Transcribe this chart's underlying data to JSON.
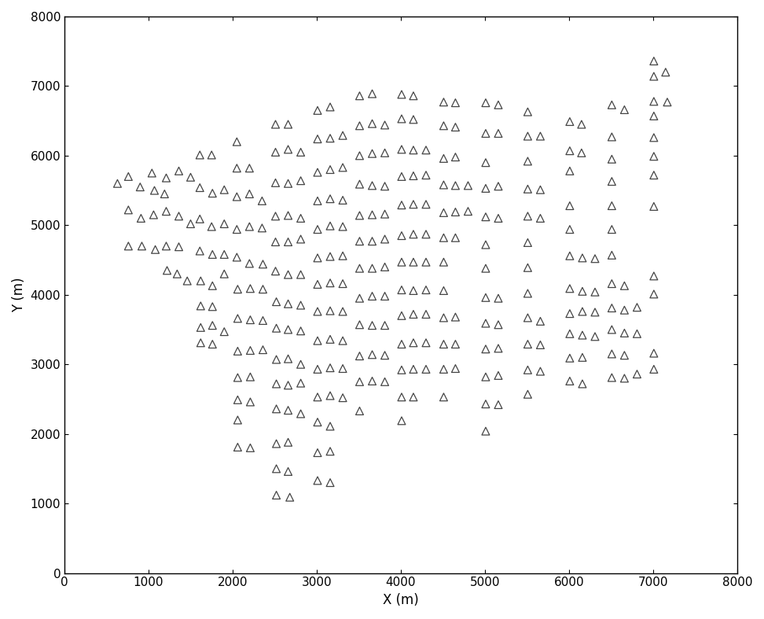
{
  "xlabel": "X (m)",
  "ylabel": "Y (m)",
  "xlim": [
    0,
    8000
  ],
  "ylim": [
    0,
    8000
  ],
  "xticks": [
    0,
    1000,
    2000,
    3000,
    4000,
    5000,
    6000,
    7000,
    8000
  ],
  "yticks": [
    0,
    1000,
    2000,
    3000,
    4000,
    5000,
    6000,
    7000,
    8000
  ],
  "background_color": "#ffffff",
  "figsize": [
    9.72,
    7.87
  ],
  "dpi": 100,
  "points": [
    [
      630,
      5600
    ],
    [
      760,
      5700
    ],
    [
      900,
      5550
    ],
    [
      1040,
      5750
    ],
    [
      760,
      5220
    ],
    [
      910,
      5100
    ],
    [
      1060,
      5150
    ],
    [
      1190,
      5450
    ],
    [
      760,
      4700
    ],
    [
      920,
      4700
    ],
    [
      1080,
      4650
    ],
    [
      1220,
      4350
    ],
    [
      1340,
      4300
    ],
    [
      1460,
      4200
    ],
    [
      1070,
      5500
    ],
    [
      1210,
      5680
    ],
    [
      1360,
      5780
    ],
    [
      1500,
      5690
    ],
    [
      1210,
      5200
    ],
    [
      1360,
      5130
    ],
    [
      1500,
      5020
    ],
    [
      1210,
      4700
    ],
    [
      1360,
      4690
    ],
    [
      1610,
      6010
    ],
    [
      1750,
      6010
    ],
    [
      1610,
      5540
    ],
    [
      1760,
      5460
    ],
    [
      1900,
      5510
    ],
    [
      1610,
      5090
    ],
    [
      1750,
      4980
    ],
    [
      1900,
      5020
    ],
    [
      1610,
      4630
    ],
    [
      1760,
      4580
    ],
    [
      1900,
      4580
    ],
    [
      1620,
      4200
    ],
    [
      1760,
      4130
    ],
    [
      1900,
      4300
    ],
    [
      1620,
      3840
    ],
    [
      1760,
      3830
    ],
    [
      1620,
      3530
    ],
    [
      1760,
      3560
    ],
    [
      1900,
      3470
    ],
    [
      1620,
      3310
    ],
    [
      1760,
      3290
    ],
    [
      2050,
      6200
    ],
    [
      2050,
      5820
    ],
    [
      2200,
      5820
    ],
    [
      2050,
      5410
    ],
    [
      2200,
      5450
    ],
    [
      2350,
      5350
    ],
    [
      2050,
      4940
    ],
    [
      2200,
      4980
    ],
    [
      2350,
      4960
    ],
    [
      2050,
      4540
    ],
    [
      2200,
      4450
    ],
    [
      2360,
      4440
    ],
    [
      2060,
      4080
    ],
    [
      2210,
      4090
    ],
    [
      2360,
      4080
    ],
    [
      2060,
      3660
    ],
    [
      2210,
      3640
    ],
    [
      2360,
      3630
    ],
    [
      2060,
      3190
    ],
    [
      2210,
      3200
    ],
    [
      2360,
      3210
    ],
    [
      2060,
      2810
    ],
    [
      2210,
      2820
    ],
    [
      2060,
      2490
    ],
    [
      2210,
      2460
    ],
    [
      2060,
      2200
    ],
    [
      2060,
      1810
    ],
    [
      2210,
      1800
    ],
    [
      2510,
      6450
    ],
    [
      2660,
      6450
    ],
    [
      2510,
      6050
    ],
    [
      2660,
      6090
    ],
    [
      2810,
      6050
    ],
    [
      2510,
      5610
    ],
    [
      2660,
      5600
    ],
    [
      2810,
      5640
    ],
    [
      2510,
      5130
    ],
    [
      2660,
      5140
    ],
    [
      2810,
      5100
    ],
    [
      2510,
      4760
    ],
    [
      2660,
      4760
    ],
    [
      2810,
      4800
    ],
    [
      2510,
      4340
    ],
    [
      2660,
      4290
    ],
    [
      2810,
      4290
    ],
    [
      2520,
      3900
    ],
    [
      2660,
      3870
    ],
    [
      2810,
      3850
    ],
    [
      2520,
      3520
    ],
    [
      2660,
      3500
    ],
    [
      2810,
      3480
    ],
    [
      2520,
      3070
    ],
    [
      2660,
      3080
    ],
    [
      2810,
      3000
    ],
    [
      2520,
      2720
    ],
    [
      2660,
      2700
    ],
    [
      2810,
      2730
    ],
    [
      2520,
      2360
    ],
    [
      2660,
      2340
    ],
    [
      2810,
      2290
    ],
    [
      2520,
      1860
    ],
    [
      2660,
      1880
    ],
    [
      2520,
      1500
    ],
    [
      2660,
      1460
    ],
    [
      2520,
      1120
    ],
    [
      2680,
      1090
    ],
    [
      3010,
      6650
    ],
    [
      3160,
      6700
    ],
    [
      3010,
      6240
    ],
    [
      3160,
      6250
    ],
    [
      3310,
      6290
    ],
    [
      3010,
      5760
    ],
    [
      3160,
      5800
    ],
    [
      3310,
      5830
    ],
    [
      3010,
      5350
    ],
    [
      3160,
      5380
    ],
    [
      3310,
      5360
    ],
    [
      3010,
      4940
    ],
    [
      3160,
      4990
    ],
    [
      3310,
      4980
    ],
    [
      3010,
      4530
    ],
    [
      3160,
      4550
    ],
    [
      3310,
      4560
    ],
    [
      3010,
      4150
    ],
    [
      3160,
      4170
    ],
    [
      3310,
      4160
    ],
    [
      3010,
      3760
    ],
    [
      3160,
      3770
    ],
    [
      3310,
      3760
    ],
    [
      3010,
      3340
    ],
    [
      3160,
      3360
    ],
    [
      3310,
      3340
    ],
    [
      3010,
      2930
    ],
    [
      3160,
      2950
    ],
    [
      3310,
      2940
    ],
    [
      3010,
      2530
    ],
    [
      3160,
      2550
    ],
    [
      3310,
      2520
    ],
    [
      3010,
      2170
    ],
    [
      3160,
      2110
    ],
    [
      3010,
      1730
    ],
    [
      3160,
      1750
    ],
    [
      3010,
      1330
    ],
    [
      3160,
      1300
    ],
    [
      3510,
      6860
    ],
    [
      3660,
      6890
    ],
    [
      3510,
      6430
    ],
    [
      3660,
      6460
    ],
    [
      3810,
      6440
    ],
    [
      3510,
      6000
    ],
    [
      3660,
      6030
    ],
    [
      3810,
      6040
    ],
    [
      3510,
      5590
    ],
    [
      3660,
      5570
    ],
    [
      3810,
      5560
    ],
    [
      3510,
      5140
    ],
    [
      3660,
      5150
    ],
    [
      3810,
      5160
    ],
    [
      3510,
      4770
    ],
    [
      3660,
      4770
    ],
    [
      3810,
      4800
    ],
    [
      3510,
      4380
    ],
    [
      3660,
      4380
    ],
    [
      3810,
      4400
    ],
    [
      3510,
      3950
    ],
    [
      3660,
      3980
    ],
    [
      3810,
      3980
    ],
    [
      3510,
      3570
    ],
    [
      3660,
      3560
    ],
    [
      3810,
      3560
    ],
    [
      3510,
      3120
    ],
    [
      3660,
      3140
    ],
    [
      3810,
      3130
    ],
    [
      3510,
      2750
    ],
    [
      3660,
      2760
    ],
    [
      3810,
      2750
    ],
    [
      3510,
      2330
    ],
    [
      4010,
      6880
    ],
    [
      4150,
      6860
    ],
    [
      4010,
      6530
    ],
    [
      4150,
      6520
    ],
    [
      4010,
      6090
    ],
    [
      4150,
      6080
    ],
    [
      4300,
      6080
    ],
    [
      4010,
      5700
    ],
    [
      4150,
      5710
    ],
    [
      4300,
      5720
    ],
    [
      4010,
      5290
    ],
    [
      4150,
      5300
    ],
    [
      4300,
      5300
    ],
    [
      4010,
      4850
    ],
    [
      4150,
      4870
    ],
    [
      4300,
      4870
    ],
    [
      4010,
      4470
    ],
    [
      4150,
      4470
    ],
    [
      4300,
      4470
    ],
    [
      4010,
      4070
    ],
    [
      4150,
      4060
    ],
    [
      4300,
      4070
    ],
    [
      4010,
      3700
    ],
    [
      4150,
      3720
    ],
    [
      4300,
      3720
    ],
    [
      4010,
      3290
    ],
    [
      4150,
      3310
    ],
    [
      4300,
      3310
    ],
    [
      4010,
      2920
    ],
    [
      4150,
      2930
    ],
    [
      4300,
      2930
    ],
    [
      4010,
      2530
    ],
    [
      4150,
      2530
    ],
    [
      4010,
      2190
    ],
    [
      4510,
      6770
    ],
    [
      4650,
      6760
    ],
    [
      4510,
      6430
    ],
    [
      4650,
      6410
    ],
    [
      4510,
      5960
    ],
    [
      4650,
      5980
    ],
    [
      4510,
      5580
    ],
    [
      4650,
      5570
    ],
    [
      4800,
      5570
    ],
    [
      4510,
      5180
    ],
    [
      4650,
      5190
    ],
    [
      4800,
      5200
    ],
    [
      4510,
      4820
    ],
    [
      4650,
      4820
    ],
    [
      4510,
      4470
    ],
    [
      4510,
      4060
    ],
    [
      4510,
      3670
    ],
    [
      4650,
      3680
    ],
    [
      4510,
      3290
    ],
    [
      4650,
      3290
    ],
    [
      4510,
      2930
    ],
    [
      4650,
      2940
    ],
    [
      4510,
      2530
    ],
    [
      5010,
      6760
    ],
    [
      5160,
      6730
    ],
    [
      5010,
      6320
    ],
    [
      5160,
      6320
    ],
    [
      5010,
      5900
    ],
    [
      5010,
      5530
    ],
    [
      5160,
      5560
    ],
    [
      5010,
      5120
    ],
    [
      5160,
      5100
    ],
    [
      5010,
      4720
    ],
    [
      5010,
      4380
    ],
    [
      5010,
      3960
    ],
    [
      5160,
      3950
    ],
    [
      5010,
      3590
    ],
    [
      5160,
      3570
    ],
    [
      5010,
      3220
    ],
    [
      5160,
      3230
    ],
    [
      5010,
      2820
    ],
    [
      5160,
      2840
    ],
    [
      5010,
      2430
    ],
    [
      5160,
      2420
    ],
    [
      5010,
      2040
    ],
    [
      5510,
      6630
    ],
    [
      5510,
      6280
    ],
    [
      5660,
      6280
    ],
    [
      5510,
      5920
    ],
    [
      5510,
      5520
    ],
    [
      5660,
      5510
    ],
    [
      5510,
      5130
    ],
    [
      5660,
      5100
    ],
    [
      5510,
      4750
    ],
    [
      5510,
      4390
    ],
    [
      5510,
      4020
    ],
    [
      5510,
      3670
    ],
    [
      5660,
      3620
    ],
    [
      5510,
      3290
    ],
    [
      5660,
      3280
    ],
    [
      5510,
      2920
    ],
    [
      5660,
      2900
    ],
    [
      5510,
      2570
    ],
    [
      6010,
      6490
    ],
    [
      6150,
      6450
    ],
    [
      6010,
      6070
    ],
    [
      6150,
      6040
    ],
    [
      6010,
      5780
    ],
    [
      6010,
      5280
    ],
    [
      6010,
      4940
    ],
    [
      6010,
      4560
    ],
    [
      6160,
      4530
    ],
    [
      6310,
      4520
    ],
    [
      6010,
      4090
    ],
    [
      6160,
      4050
    ],
    [
      6310,
      4040
    ],
    [
      6010,
      3730
    ],
    [
      6160,
      3760
    ],
    [
      6310,
      3750
    ],
    [
      6010,
      3440
    ],
    [
      6160,
      3420
    ],
    [
      6310,
      3400
    ],
    [
      6010,
      3090
    ],
    [
      6160,
      3100
    ],
    [
      6010,
      2760
    ],
    [
      6160,
      2720
    ],
    [
      6510,
      6730
    ],
    [
      6660,
      6660
    ],
    [
      6510,
      6270
    ],
    [
      6510,
      5950
    ],
    [
      6510,
      5630
    ],
    [
      6510,
      5280
    ],
    [
      6510,
      4940
    ],
    [
      6510,
      4570
    ],
    [
      6510,
      4160
    ],
    [
      6660,
      4130
    ],
    [
      6510,
      3810
    ],
    [
      6660,
      3780
    ],
    [
      6810,
      3820
    ],
    [
      6510,
      3500
    ],
    [
      6660,
      3450
    ],
    [
      6810,
      3440
    ],
    [
      6510,
      3150
    ],
    [
      6660,
      3130
    ],
    [
      6510,
      2810
    ],
    [
      6660,
      2800
    ],
    [
      6810,
      2860
    ],
    [
      7010,
      7360
    ],
    [
      7010,
      7140
    ],
    [
      7150,
      7200
    ],
    [
      7010,
      6780
    ],
    [
      7170,
      6770
    ],
    [
      7010,
      6570
    ],
    [
      7010,
      6260
    ],
    [
      7010,
      5990
    ],
    [
      7010,
      5720
    ],
    [
      7010,
      5270
    ],
    [
      7010,
      4270
    ],
    [
      7010,
      4010
    ],
    [
      7010,
      3160
    ],
    [
      7010,
      2930
    ]
  ]
}
